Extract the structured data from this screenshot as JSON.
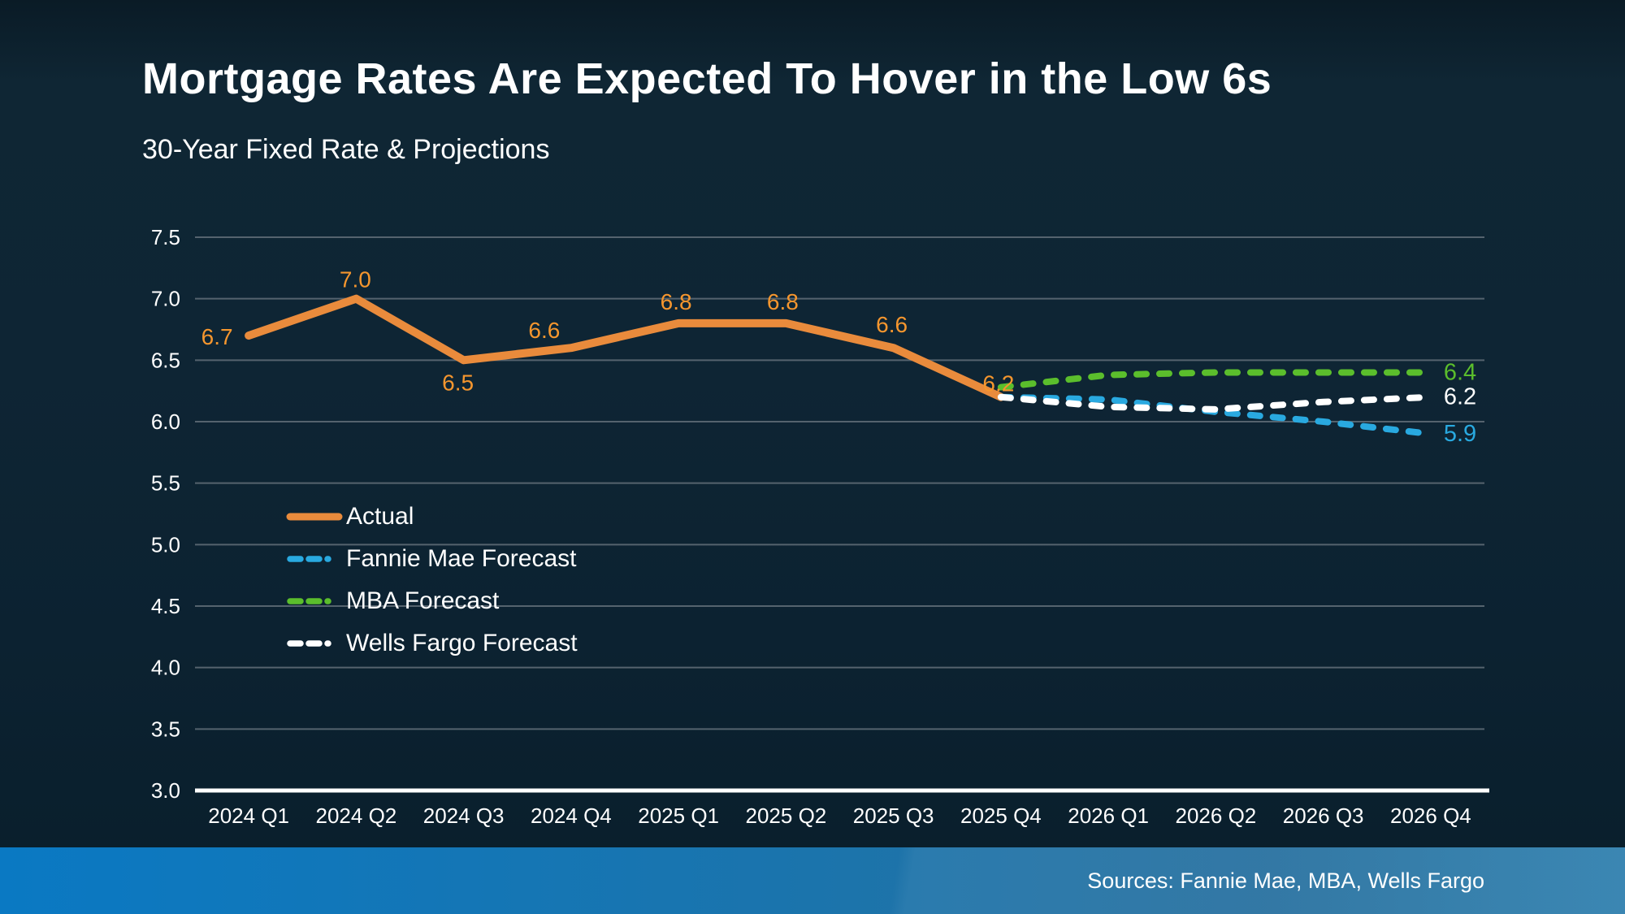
{
  "page": {
    "title": "Mortgage Rates Are Expected To Hover in the Low 6s",
    "subtitle": "30-Year Fixed Rate & Projections",
    "source_note": "Sources: Fannie Mae, MBA, Wells Fargo"
  },
  "colors": {
    "background": "#0D2433",
    "gridline": "#55636E",
    "axis_line": "#FFFFFF",
    "footer_gradient_left": "#0A79C3",
    "footer_gradient_right": "#2F7FAE",
    "actual": "#E98B3C",
    "fannie_mae": "#29A9E0",
    "mba": "#5BBE2C",
    "wells_fargo": "#FFFFFF"
  },
  "chart_data": {
    "type": "line",
    "title": "Mortgage Rates Are Expected To Hover in the Low 6s",
    "subtitle": "30-Year Fixed Rate & Projections",
    "categories": [
      "2024 Q1",
      "2024 Q2",
      "2024 Q3",
      "2024 Q4",
      "2025 Q1",
      "2025 Q2",
      "2025 Q3",
      "2025 Q4",
      "2026 Q1",
      "2026 Q2",
      "2026 Q3",
      "2026 Q4"
    ],
    "ylim": [
      3.0,
      7.5
    ],
    "ytick_step": 0.5,
    "grid": true,
    "legend_position": "inside-left-middle",
    "series": [
      {
        "name": "Actual",
        "style": "solid",
        "color": "#E98B3C",
        "label_color": "#F5962E",
        "start_index": 0,
        "values": [
          6.7,
          7.0,
          6.5,
          6.6,
          6.8,
          6.8,
          6.6,
          6.2
        ],
        "point_labels": [
          "6.7",
          "7.0",
          "6.5",
          "6.6",
          "6.8",
          "6.8",
          "6.6",
          "6.2"
        ],
        "label_offsets": [
          [
            -39,
            11
          ],
          [
            -1,
            -14
          ],
          [
            -7,
            37
          ],
          [
            -33,
            -12
          ],
          [
            -3,
            -17
          ],
          [
            -4,
            -17
          ],
          [
            -2,
            -19
          ],
          [
            -3,
            -7
          ]
        ]
      },
      {
        "name": "Fannie Mae Forecast",
        "style": "dashed",
        "color": "#29A9E0",
        "start_index": 7,
        "values": [
          6.2,
          6.18,
          6.08,
          6.0,
          5.9
        ],
        "end_label": "5.9"
      },
      {
        "name": "MBA Forecast",
        "style": "dashed",
        "color": "#5BBE2C",
        "start_index": 7,
        "values": [
          6.28,
          6.38,
          6.4,
          6.4,
          6.4
        ],
        "end_label": "6.4"
      },
      {
        "name": "Wells Fargo Forecast",
        "style": "dashed",
        "color": "#FFFFFF",
        "start_index": 7,
        "values": [
          6.2,
          6.12,
          6.1,
          6.16,
          6.2
        ],
        "end_label": "6.2"
      }
    ]
  }
}
